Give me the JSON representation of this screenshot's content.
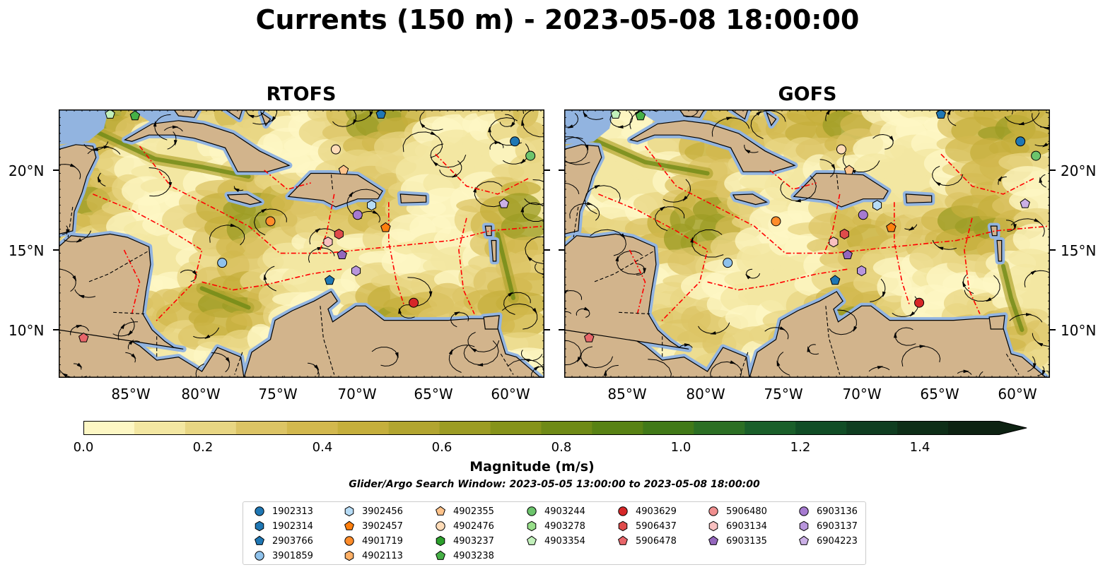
{
  "title": "Currents (150 m) - 2023-05-08 18:00:00",
  "panels": [
    {
      "id": "rtofs",
      "title": "RTOFS"
    },
    {
      "id": "gofs",
      "title": "GOFS"
    }
  ],
  "axes": {
    "lat_labels": [
      "20°N",
      "15°N",
      "10°N"
    ],
    "lon_labels": [
      "85°W",
      "80°W",
      "75°W",
      "70°W",
      "65°W",
      "60°W"
    ]
  },
  "colorbar": {
    "label": "Magnitude (m/s)",
    "ticks": [
      "0.0",
      "0.2",
      "0.4",
      "0.6",
      "0.8",
      "1.0",
      "1.2",
      "1.4"
    ],
    "range": [
      0.0,
      1.5
    ],
    "extend": "max",
    "colors": [
      "#fdf7c4",
      "#f3e7a2",
      "#e8d683",
      "#dcc465",
      "#d2b84e",
      "#c5af3c",
      "#b2a530",
      "#9c9c24",
      "#86931a",
      "#6f8a16",
      "#588214",
      "#417918",
      "#2c6f24",
      "#1a5f2a",
      "#114d26",
      "#0f3d20",
      "#0e2e18",
      "#0d2212"
    ]
  },
  "search_window": "Glider/Argo Search Window: 2023-05-05 13:00:00 to 2023-05-08 18:00:00",
  "map_style": {
    "land": "#d2b48c",
    "water": "#92b4e0",
    "front_lines": "#ff0000",
    "streamlines": "#000000"
  },
  "legend": [
    {
      "id": "1902313",
      "shape": "circle",
      "color": "#1f77b4"
    },
    {
      "id": "1902314",
      "shape": "hexagon",
      "color": "#1f77b4"
    },
    {
      "id": "2903766",
      "shape": "pentagon",
      "color": "#1f77b4"
    },
    {
      "id": "3901859",
      "shape": "circle",
      "color": "#8fc2ec"
    },
    {
      "id": "3902456",
      "shape": "hexagon",
      "color": "#b7dcf6"
    },
    {
      "id": "3902457",
      "shape": "pentagon",
      "color": "#ff7f0e"
    },
    {
      "id": "4901719",
      "shape": "circle",
      "color": "#ff8c2a"
    },
    {
      "id": "4902113",
      "shape": "hexagon",
      "color": "#ffb066"
    },
    {
      "id": "4902355",
      "shape": "pentagon",
      "color": "#ffc38a"
    },
    {
      "id": "4902476",
      "shape": "circle",
      "color": "#ffdcb8"
    },
    {
      "id": "4903237",
      "shape": "hexagon",
      "color": "#2ca02c"
    },
    {
      "id": "4903238",
      "shape": "pentagon",
      "color": "#46b046"
    },
    {
      "id": "4903244",
      "shape": "circle",
      "color": "#6cc46c"
    },
    {
      "id": "4903278",
      "shape": "hexagon",
      "color": "#98df8a"
    },
    {
      "id": "4903354",
      "shape": "pentagon",
      "color": "#c2f0bb"
    },
    {
      "id": "4903629",
      "shape": "circle",
      "color": "#d62728"
    },
    {
      "id": "5906437",
      "shape": "hexagon",
      "color": "#df4b4b"
    },
    {
      "id": "5906478",
      "shape": "pentagon",
      "color": "#e8666a"
    },
    {
      "id": "5906480",
      "shape": "circle",
      "color": "#f08f8f"
    },
    {
      "id": "6903134",
      "shape": "hexagon",
      "color": "#f9c0c0"
    },
    {
      "id": "6903135",
      "shape": "pentagon",
      "color": "#9467bd"
    },
    {
      "id": "6903136",
      "shape": "circle",
      "color": "#a67ad0"
    },
    {
      "id": "6903137",
      "shape": "hexagon",
      "color": "#b895dc"
    },
    {
      "id": "6904223",
      "shape": "pentagon",
      "color": "#cbb0e6"
    }
  ],
  "floats": {
    "rtofs": [
      {
        "id": "2903766",
        "lon": -68.5,
        "lat": 23.5
      },
      {
        "id": "1902313",
        "lon": -59.9,
        "lat": 21.8
      },
      {
        "id": "4903244",
        "lon": -58.9,
        "lat": 20.9
      },
      {
        "id": "6904223",
        "lon": -60.6,
        "lat": 17.9
      },
      {
        "id": "3902456",
        "lon": -69.1,
        "lat": 17.8
      },
      {
        "id": "6903136",
        "lon": -70.0,
        "lat": 17.2
      },
      {
        "id": "3902457",
        "lon": -68.2,
        "lat": 16.4
      },
      {
        "id": "5906437",
        "lon": -71.2,
        "lat": 16.0
      },
      {
        "id": "4901719",
        "lon": -75.6,
        "lat": 16.8
      },
      {
        "id": "6903134",
        "lon": -71.9,
        "lat": 15.5
      },
      {
        "id": "6903135",
        "lon": -71.0,
        "lat": 14.7
      },
      {
        "id": "6903137",
        "lon": -70.1,
        "lat": 13.7
      },
      {
        "id": "2903766",
        "lon": -71.8,
        "lat": 13.1
      },
      {
        "id": "3901859",
        "lon": -78.7,
        "lat": 14.2
      },
      {
        "id": "4903629",
        "lon": -66.4,
        "lat": 11.7
      },
      {
        "id": "5906478",
        "lon": -87.6,
        "lat": 9.5
      },
      {
        "id": "4902476",
        "lon": -71.4,
        "lat": 21.3
      },
      {
        "id": "4902355",
        "lon": -70.9,
        "lat": 20.0
      },
      {
        "id": "4903354",
        "lon": -85.9,
        "lat": 23.5
      },
      {
        "id": "4903238",
        "lon": -84.3,
        "lat": 23.4
      }
    ],
    "gofs": [
      {
        "id": "2903766",
        "lon": -65.0,
        "lat": 23.5
      },
      {
        "id": "1902313",
        "lon": -59.9,
        "lat": 21.8
      },
      {
        "id": "4903244",
        "lon": -58.9,
        "lat": 20.9
      },
      {
        "id": "6904223",
        "lon": -59.6,
        "lat": 17.9
      },
      {
        "id": "3902456",
        "lon": -69.1,
        "lat": 17.8
      },
      {
        "id": "6903136",
        "lon": -70.0,
        "lat": 17.2
      },
      {
        "id": "3902457",
        "lon": -68.2,
        "lat": 16.4
      },
      {
        "id": "5906437",
        "lon": -71.2,
        "lat": 16.0
      },
      {
        "id": "4901719",
        "lon": -75.6,
        "lat": 16.8
      },
      {
        "id": "6903134",
        "lon": -71.9,
        "lat": 15.5
      },
      {
        "id": "6903135",
        "lon": -71.0,
        "lat": 14.7
      },
      {
        "id": "6903137",
        "lon": -70.1,
        "lat": 13.7
      },
      {
        "id": "2903766",
        "lon": -71.8,
        "lat": 13.1
      },
      {
        "id": "3901859",
        "lon": -78.7,
        "lat": 14.2
      },
      {
        "id": "4903629",
        "lon": -66.4,
        "lat": 11.7
      },
      {
        "id": "5906478",
        "lon": -87.6,
        "lat": 9.5
      },
      {
        "id": "4902476",
        "lon": -71.4,
        "lat": 21.3
      },
      {
        "id": "4902355",
        "lon": -70.9,
        "lat": 20.0
      },
      {
        "id": "4903354",
        "lon": -85.9,
        "lat": 23.5
      },
      {
        "id": "4903238",
        "lon": -84.3,
        "lat": 23.4
      }
    ]
  }
}
